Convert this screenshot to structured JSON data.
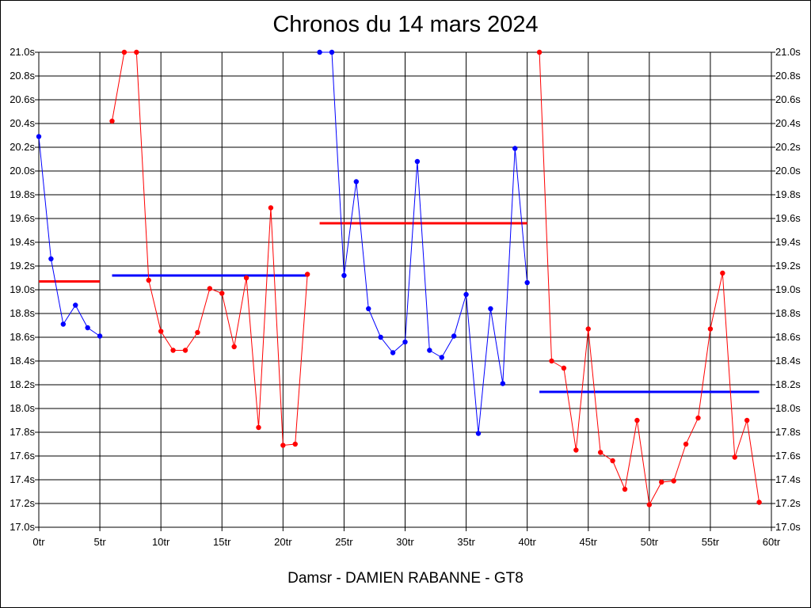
{
  "chart_data": {
    "type": "line",
    "title": "Chronos du 14 mars 2024",
    "xlabel": "Damsr - DAMIEN RABANNE - GT8",
    "ylabel": "",
    "xlim": [
      0,
      60
    ],
    "ylim": [
      17.0,
      21.0
    ],
    "grid": true,
    "x_ticks": [
      "0tr",
      "5tr",
      "10tr",
      "15tr",
      "20tr",
      "25tr",
      "30tr",
      "35tr",
      "40tr",
      "45tr",
      "50tr",
      "55tr",
      "60tr"
    ],
    "y_ticks": [
      "17.0s",
      "17.2s",
      "17.4s",
      "17.6s",
      "17.8s",
      "18.0s",
      "18.2s",
      "18.4s",
      "18.6s",
      "18.8s",
      "19.0s",
      "19.2s",
      "19.4s",
      "19.6s",
      "19.8s",
      "20.0s",
      "20.2s",
      "20.4s",
      "20.6s",
      "20.8s",
      "21.0s"
    ],
    "series": [
      {
        "color": "#0000ff",
        "x": [
          0,
          1,
          2,
          3,
          4,
          5
        ],
        "y": [
          20.29,
          19.26,
          18.71,
          18.87,
          18.68,
          18.61
        ]
      },
      {
        "color": "#ff0000",
        "x": [
          6,
          7,
          8,
          9,
          10,
          11,
          12,
          13,
          14,
          15,
          16,
          17,
          18,
          19,
          20,
          21,
          22
        ],
        "y": [
          20.42,
          21.0,
          21.0,
          19.08,
          18.65,
          18.49,
          18.49,
          18.64,
          19.01,
          18.97,
          18.52,
          19.1,
          17.84,
          19.69,
          17.69,
          17.7,
          19.13
        ]
      },
      {
        "color": "#0000ff",
        "x": [
          23,
          24,
          25,
          26,
          27,
          28,
          29,
          30,
          31,
          32,
          33,
          34,
          35,
          36,
          37,
          38,
          39,
          40
        ],
        "y": [
          21.0,
          21.0,
          19.12,
          19.91,
          18.84,
          18.6,
          18.47,
          18.56,
          20.08,
          18.49,
          18.43,
          18.61,
          18.96,
          17.79,
          18.84,
          18.21,
          20.19,
          19.06
        ]
      },
      {
        "color": "#ff0000",
        "x": [
          41,
          42,
          43,
          44,
          45,
          46,
          47,
          48,
          49,
          50,
          51,
          52,
          53,
          54,
          55,
          56,
          57,
          58,
          59
        ],
        "y": [
          21.0,
          18.4,
          18.34,
          17.65,
          18.67,
          17.63,
          17.56,
          17.32,
          17.9,
          17.19,
          17.38,
          17.39,
          17.7,
          17.92,
          18.67,
          19.14,
          17.59,
          17.9,
          17.21
        ]
      }
    ],
    "averages": [
      {
        "color": "#ff0000",
        "x": [
          0,
          5
        ],
        "y": 19.07
      },
      {
        "color": "#0000ff",
        "x": [
          6,
          22
        ],
        "y": 19.12
      },
      {
        "color": "#ff0000",
        "x": [
          23,
          40
        ],
        "y": 19.56
      },
      {
        "color": "#0000ff",
        "x": [
          41,
          59
        ],
        "y": 18.14
      }
    ]
  }
}
